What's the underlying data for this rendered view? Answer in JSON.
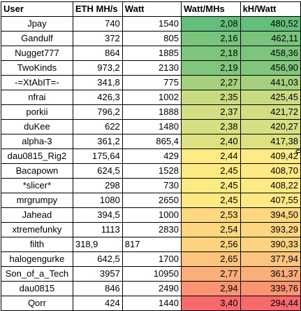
{
  "header": {
    "user": "User",
    "eth": "ETH MH/s",
    "watt": "Watt",
    "watt_per_mhs": "Watt/MHs",
    "kh_per_watt": "kH/Watt"
  },
  "rows": [
    {
      "user": "Jpay",
      "eth": "740",
      "watt": "1540",
      "wpm": "2,08",
      "khw": "480,52",
      "color": "#63be7b"
    },
    {
      "user": "Gandulf",
      "eth": "372",
      "watt": "805",
      "wpm": "2,16",
      "khw": "462,11",
      "color": "#78c47c"
    },
    {
      "user": "Nugget777",
      "eth": "864",
      "watt": "1885",
      "wpm": "2,18",
      "khw": "458,36",
      "color": "#7dc57c"
    },
    {
      "user": "TwoKinds",
      "eth": "973,2",
      "watt": "2130",
      "wpm": "2,19",
      "khw": "456,90",
      "color": "#80c67c"
    },
    {
      "user": "-=XtAbIT=-",
      "eth": "341,8",
      "watt": "775",
      "wpm": "2,27",
      "khw": "441,03",
      "color": "#a5d17e"
    },
    {
      "user": "nfrai",
      "eth": "426,3",
      "watt": "1002",
      "wpm": "2,35",
      "khw": "425,45",
      "color": "#c9db80"
    },
    {
      "user": "porkii",
      "eth": "796,2",
      "watt": "1888",
      "wpm": "2,37",
      "khw": "421,72",
      "color": "#d1de81"
    },
    {
      "user": "duKee",
      "eth": "622",
      "watt": "1480",
      "wpm": "2,38",
      "khw": "420,27",
      "color": "#d6df81"
    },
    {
      "user": "alpha-3",
      "eth": "361,2",
      "watt": "865,4",
      "wpm": "2,40",
      "khw": "417,38",
      "color": "#dee182"
    },
    {
      "user": "dau0815_Rig2",
      "eth": "175,64",
      "watt": "429",
      "wpm": "2,44",
      "khw": "409,42",
      "color": "#feeb84"
    },
    {
      "user": "Bacapown",
      "eth": "624,5",
      "watt": "1528",
      "wpm": "2,45",
      "khw": "408,70",
      "color": "#feea83"
    },
    {
      "user": "*slicer*",
      "eth": "298",
      "watt": "730",
      "wpm": "2,45",
      "khw": "408,22",
      "color": "#feea83"
    },
    {
      "user": "mrgrumpy",
      "eth": "1080",
      "watt": "2650",
      "wpm": "2,45",
      "khw": "407,55",
      "color": "#fee983"
    },
    {
      "user": "Jahead",
      "eth": "394,5",
      "watt": "1000",
      "wpm": "2,53",
      "khw": "394,50",
      "color": "#fdd880"
    },
    {
      "user": "xtremefunky",
      "eth": "1113",
      "watt": "2830",
      "wpm": "2,54",
      "khw": "393,29",
      "color": "#fdd67f"
    },
    {
      "user": "filth",
      "eth": "318,9",
      "watt": "817",
      "wpm": "2,56",
      "khw": "390,33",
      "color": "#fdd37f",
      "leftAligned": true
    },
    {
      "user": "halogengurke",
      "eth": "642,5",
      "watt": "1700",
      "wpm": "2,65",
      "khw": "377,94",
      "color": "#fcc47c"
    },
    {
      "user": "Son_of_a_Tech",
      "eth": "3957",
      "watt": "10950",
      "wpm": "2,77",
      "khw": "361,37",
      "color": "#fbaf78"
    },
    {
      "user": "dau0815",
      "eth": "846",
      "watt": "2490",
      "wpm": "2,94",
      "khw": "339,76",
      "color": "#fa9473"
    },
    {
      "user": "Qorr",
      "eth": "424",
      "watt": "1440",
      "wpm": "3,40",
      "khw": "294,44",
      "color": "#f8696b"
    }
  ]
}
